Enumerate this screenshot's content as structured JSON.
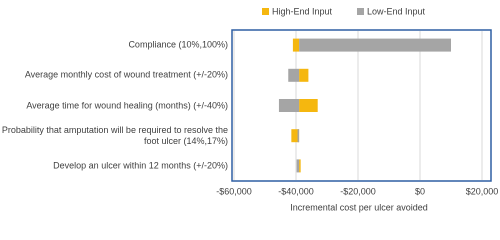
{
  "chart_data": {
    "type": "tornado",
    "categories": [
      "Compliance (10%,100%)",
      "Average monthly cost of wound treatment (+/-20%)",
      "Average time for wound healing (months) (+/-40%)",
      "Probability that amputation will be required to resolve the foot ulcer (14%,17%)",
      "Develop an ulcer within 12 months (+/-20%)"
    ],
    "base": -39000,
    "series": [
      {
        "name": "High-End Input",
        "color": "#f5b70f",
        "values": [
          -41000,
          -36000,
          -33000,
          -41500,
          -38500
        ]
      },
      {
        "name": "Low-End Input",
        "color": "#a5a5a5",
        "values": [
          10000,
          -42500,
          -45500,
          -39500,
          -39800
        ]
      }
    ],
    "xlim": [
      -60000,
      20000
    ],
    "xticks": [
      {
        "value": -60000,
        "label": "-$60,000"
      },
      {
        "value": -40000,
        "label": "-$40,000"
      },
      {
        "value": -20000,
        "label": "-$20,000"
      },
      {
        "value": 0,
        "label": "$0"
      },
      {
        "value": 20000,
        "label": "$20,000"
      }
    ],
    "xlabel": "Incremental cost per ulcer avoided",
    "grid": true
  }
}
